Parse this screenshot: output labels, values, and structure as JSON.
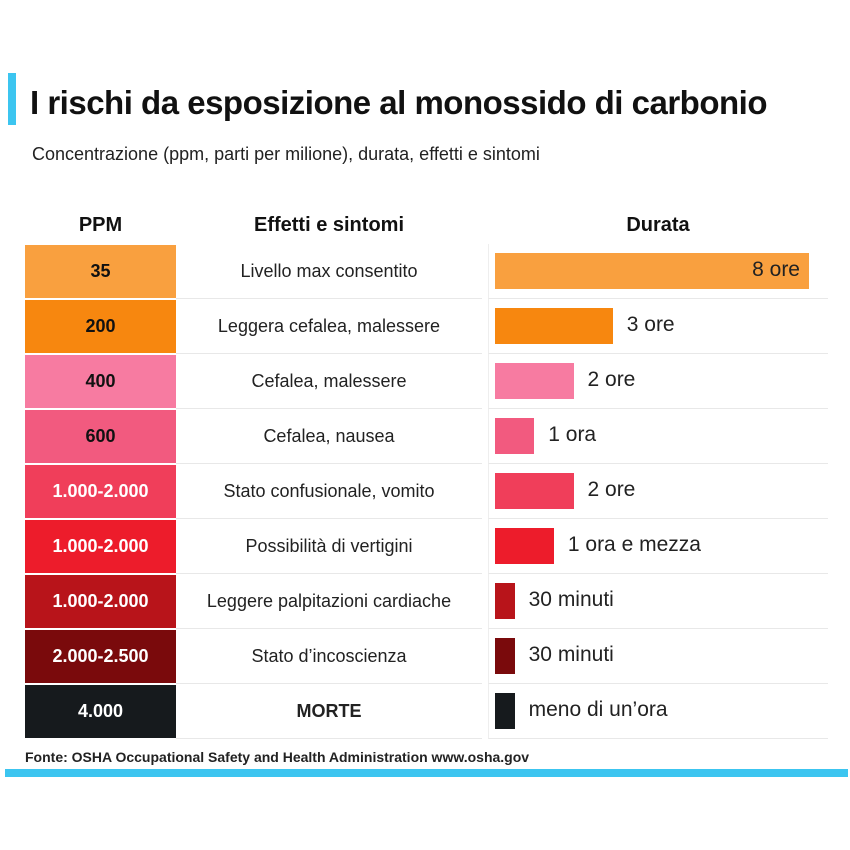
{
  "title": "I rischi da esposizione al monossido di carbonio",
  "subtitle": "Concentrazione (ppm, parti per milione), durata, effetti e sintomi",
  "source": "Fonte: OSHA Occupational Safety and Health Administration www.osha.gov",
  "colors": {
    "accent": "#3cc5f0"
  },
  "chart_data": {
    "type": "table",
    "columns": [
      "PPM",
      "Effetti e sintomi",
      "Durata"
    ],
    "bar_unit": "hours",
    "rows": [
      {
        "ppm": "35",
        "effect": "Livello max consentito",
        "duration": "8 ore",
        "hours": 8,
        "color": "#f9a03f",
        "text": "#111"
      },
      {
        "ppm": "200",
        "effect": "Leggera cefalea, malessere",
        "duration": "3 ore",
        "hours": 3,
        "color": "#f7870f",
        "text": "#111"
      },
      {
        "ppm": "400",
        "effect": "Cefalea, malessere",
        "duration": "2 ore",
        "hours": 2,
        "color": "#f77ba1",
        "text": "#111"
      },
      {
        "ppm": "600",
        "effect": "Cefalea, nausea",
        "duration": "1 ora",
        "hours": 1,
        "color": "#f25a7f",
        "text": "#111"
      },
      {
        "ppm": "1.000-2.000",
        "effect": "Stato confusionale, vomito",
        "duration": "2 ore",
        "hours": 2,
        "color": "#f03e5a",
        "text": "#fff"
      },
      {
        "ppm": "1.000-2.000",
        "effect": "Possibilità di vertigini",
        "duration": "1 ora e mezza",
        "hours": 1.5,
        "color": "#ed1c2b",
        "text": "#fff"
      },
      {
        "ppm": "1.000-2.000",
        "effect": "Leggere palpitazioni cardiache",
        "duration": "30 minuti",
        "hours": 0.5,
        "color": "#b8141a",
        "text": "#fff"
      },
      {
        "ppm": "2.000-2.500",
        "effect": "Stato d’incoscienza",
        "duration": "30 minuti",
        "hours": 0.5,
        "color": "#7a0a0c",
        "text": "#fff"
      },
      {
        "ppm": "4.000",
        "effect": "MORTE",
        "duration": "meno di un’ora",
        "hours": 0.5,
        "color": "#161a1d",
        "text": "#fff",
        "bold": true
      }
    ]
  }
}
